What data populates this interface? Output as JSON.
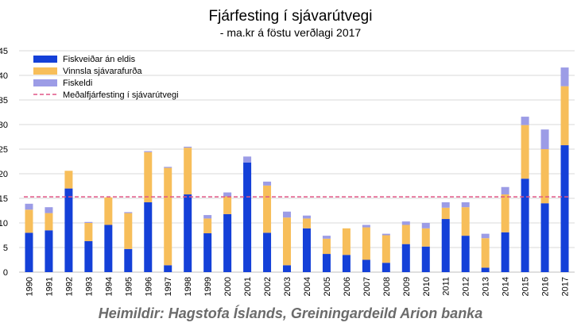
{
  "chart_data": {
    "type": "bar",
    "stacked": true,
    "title": "Fjárfesting í sjávarútvegi",
    "subtitle": "- ma.kr á föstu verðlagi 2017",
    "categories": [
      "1990",
      "1991",
      "1992",
      "1993",
      "1994",
      "1995",
      "1996",
      "1997",
      "1998",
      "1999",
      "2000",
      "2001",
      "2002",
      "2003",
      "2004",
      "2005",
      "2006",
      "2007",
      "2008",
      "2009",
      "2010",
      "2011",
      "2012",
      "2013",
      "2014",
      "2015",
      "2016",
      "2017"
    ],
    "series": [
      {
        "name": "Fiskveiðar án eldis",
        "color": "#1440d8",
        "values": [
          8.0,
          8.5,
          17.0,
          6.3,
          9.6,
          4.7,
          14.2,
          1.4,
          15.8,
          7.9,
          11.8,
          22.3,
          8.0,
          1.4,
          8.9,
          3.7,
          3.5,
          2.5,
          1.9,
          5.7,
          5.2,
          10.8,
          7.4,
          0.9,
          8.1,
          19.0,
          14.0,
          25.8
        ]
      },
      {
        "name": "Vinnsla sjávarafurða",
        "color": "#f7be5a",
        "values": [
          4.7,
          3.5,
          3.6,
          3.7,
          5.6,
          7.3,
          10.2,
          19.8,
          9.5,
          3.0,
          3.6,
          0.0,
          9.6,
          9.7,
          2.0,
          3.1,
          5.4,
          6.6,
          5.6,
          3.9,
          3.7,
          2.3,
          5.8,
          6.0,
          7.7,
          10.9,
          11.0,
          12.0
        ]
      },
      {
        "name": "Fiskeldi",
        "color": "#9c9ce6",
        "values": [
          1.2,
          1.2,
          0.0,
          0.2,
          0.0,
          0.2,
          0.2,
          0.2,
          0.2,
          0.7,
          0.8,
          1.2,
          0.8,
          1.2,
          0.6,
          0.6,
          0.0,
          0.5,
          0.3,
          0.7,
          1.1,
          1.1,
          1.0,
          0.9,
          1.5,
          1.7,
          4.0,
          3.8
        ]
      }
    ],
    "reference_line": {
      "name": "Meðalfjárfesting í sjávarútvegi",
      "value": 15.3,
      "color": "#e05585",
      "style": "dashed"
    },
    "ylim": [
      0,
      45
    ],
    "yticks": [
      "0",
      "5",
      "10",
      "15",
      "20",
      "25",
      "30",
      "35",
      "40",
      "45"
    ],
    "grid": true,
    "legend_position": "top-left"
  },
  "source": "Heimildir: Hagstofa Íslands, Greiningardeild Arion banka"
}
